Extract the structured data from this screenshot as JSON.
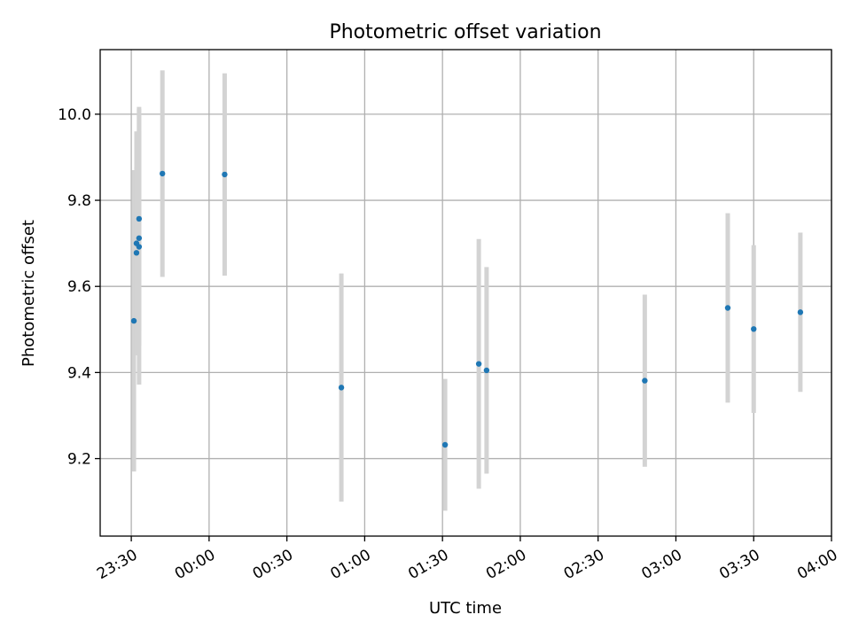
{
  "chart_data": {
    "type": "scatter",
    "title": "Photometric offset variation",
    "xlabel": "UTC time",
    "ylabel": "Photometric offset",
    "x_unit": "HH:MM (UTC)",
    "xlim": [
      "23:18",
      "04:00"
    ],
    "ylim": [
      9.02,
      10.15
    ],
    "x_ticks": [
      "23:30",
      "00:00",
      "00:30",
      "01:00",
      "01:30",
      "02:00",
      "02:30",
      "03:00",
      "03:30",
      "04:00"
    ],
    "y_ticks": [
      9.2,
      9.4,
      9.6,
      9.8,
      10.0
    ],
    "y_tick_labels": [
      "9.2",
      "9.4",
      "9.6",
      "9.8",
      "10.0"
    ],
    "grid": true,
    "tick_label_rotation": "30deg",
    "point_color": "#1f77b4",
    "errorbar_color": "#d3d3d3",
    "points": [
      {
        "t": "23:31",
        "y": 9.52,
        "err": 0.35
      },
      {
        "t": "23:32",
        "y": 9.678,
        "err": 0.2
      },
      {
        "t": "23:32",
        "y": 9.7,
        "err": 0.26
      },
      {
        "t": "23:33",
        "y": 9.692,
        "err": 0.32
      },
      {
        "t": "23:33",
        "y": 9.757,
        "err": 0.26
      },
      {
        "t": "23:33",
        "y": 9.712,
        "err": 0.25
      },
      {
        "t": "23:42",
        "y": 9.862,
        "err": 0.24
      },
      {
        "t": "00:06",
        "y": 9.86,
        "err": 0.235
      },
      {
        "t": "00:51",
        "y": 9.365,
        "err": 0.265
      },
      {
        "t": "01:31",
        "y": 9.232,
        "err": 0.153
      },
      {
        "t": "01:44",
        "y": 9.42,
        "err": 0.29
      },
      {
        "t": "01:47",
        "y": 9.405,
        "err": 0.24
      },
      {
        "t": "02:48",
        "y": 9.381,
        "err": 0.2
      },
      {
        "t": "03:20",
        "y": 9.55,
        "err": 0.22
      },
      {
        "t": "03:30",
        "y": 9.501,
        "err": 0.195
      },
      {
        "t": "03:48",
        "y": 9.54,
        "err": 0.185
      }
    ]
  }
}
